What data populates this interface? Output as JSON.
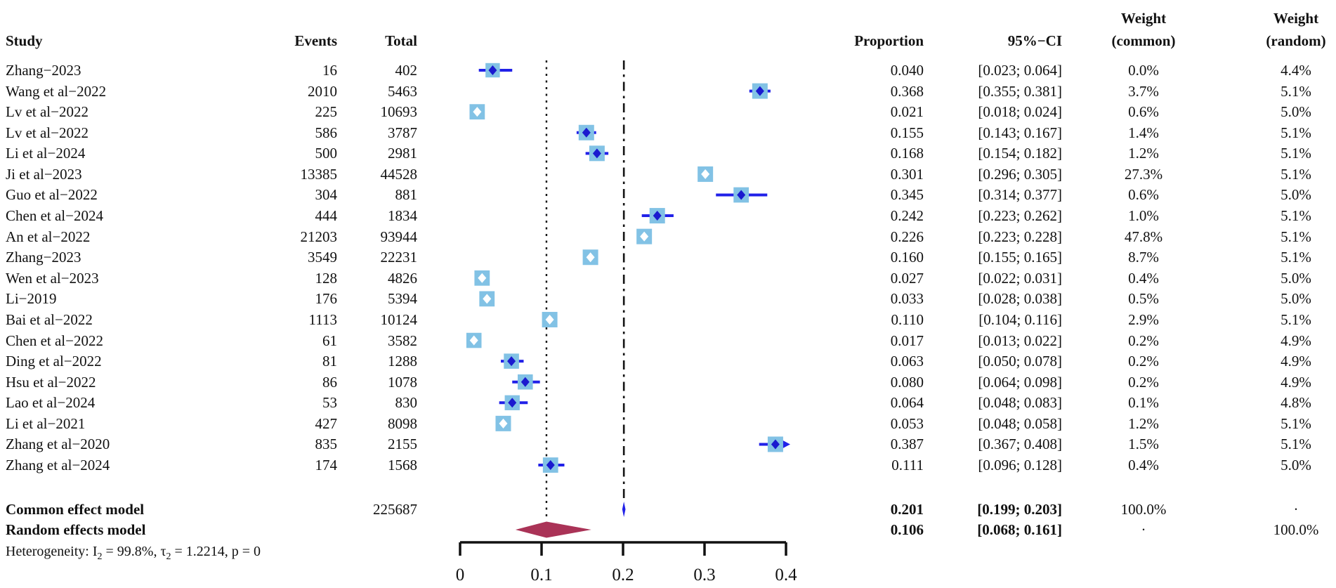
{
  "columns": {
    "study": "Study",
    "events": "Events",
    "total": "Total",
    "proportion": "Proportion",
    "ci": "95%−CI",
    "weight_common_line1": "Weight",
    "weight_common_line2": "(common)",
    "weight_random_line1": "Weight",
    "weight_random_line2": "(random)"
  },
  "heterogeneity": {
    "prefix": "Heterogeneity: I",
    "sub1": "2",
    "mid": " = 99.8%, τ",
    "sub2": "2",
    "suffix": " = 1.2214, p = 0"
  },
  "chart_data": {
    "type": "forest",
    "x_axis": {
      "min": 0,
      "max": 0.4,
      "ticks": [
        0,
        0.1,
        0.2,
        0.3,
        0.4
      ],
      "tick_labels": [
        "0",
        "0.1",
        "0.2",
        "0.3",
        "0.4"
      ]
    },
    "reference_lines": [
      {
        "value": 0.106,
        "style": "dotted"
      },
      {
        "value": 0.201,
        "style": "dash-dot"
      }
    ],
    "studies": [
      {
        "study": "Zhang−2023",
        "events": "16",
        "total": "402",
        "proportion": "0.040",
        "ci": "[0.023; 0.064]",
        "weight_common": "0.0%",
        "weight_random": "4.4%",
        "p": 0.04,
        "lo": 0.023,
        "hi": 0.064
      },
      {
        "study": "Wang et al−2022",
        "events": "2010",
        "total": "5463",
        "proportion": "0.368",
        "ci": "[0.355; 0.381]",
        "weight_common": "3.7%",
        "weight_random": "5.1%",
        "p": 0.368,
        "lo": 0.355,
        "hi": 0.381
      },
      {
        "study": "Lv et al−2022",
        "events": "225",
        "total": "10693",
        "proportion": "0.021",
        "ci": "[0.018; 0.024]",
        "weight_common": "0.6%",
        "weight_random": "5.0%",
        "p": 0.021,
        "lo": 0.018,
        "hi": 0.024
      },
      {
        "study": "Lv et al−2022",
        "events": "586",
        "total": "3787",
        "proportion": "0.155",
        "ci": "[0.143; 0.167]",
        "weight_common": "1.4%",
        "weight_random": "5.1%",
        "p": 0.155,
        "lo": 0.143,
        "hi": 0.167
      },
      {
        "study": "Li et al−2024",
        "events": "500",
        "total": "2981",
        "proportion": "0.168",
        "ci": "[0.154; 0.182]",
        "weight_common": "1.2%",
        "weight_random": "5.1%",
        "p": 0.168,
        "lo": 0.154,
        "hi": 0.182
      },
      {
        "study": "Ji et al−2023",
        "events": "13385",
        "total": "44528",
        "proportion": "0.301",
        "ci": "[0.296; 0.305]",
        "weight_common": "27.3%",
        "weight_random": "5.1%",
        "p": 0.301,
        "lo": 0.296,
        "hi": 0.305
      },
      {
        "study": "Guo et al−2022",
        "events": "304",
        "total": "881",
        "proportion": "0.345",
        "ci": "[0.314; 0.377]",
        "weight_common": "0.6%",
        "weight_random": "5.0%",
        "p": 0.345,
        "lo": 0.314,
        "hi": 0.377
      },
      {
        "study": "Chen et al−2024",
        "events": "444",
        "total": "1834",
        "proportion": "0.242",
        "ci": "[0.223; 0.262]",
        "weight_common": "1.0%",
        "weight_random": "5.1%",
        "p": 0.242,
        "lo": 0.223,
        "hi": 0.262
      },
      {
        "study": "An et al−2022",
        "events": "21203",
        "total": "93944",
        "proportion": "0.226",
        "ci": "[0.223; 0.228]",
        "weight_common": "47.8%",
        "weight_random": "5.1%",
        "p": 0.226,
        "lo": 0.223,
        "hi": 0.228
      },
      {
        "study": "Zhang−2023",
        "events": "3549",
        "total": "22231",
        "proportion": "0.160",
        "ci": "[0.155; 0.165]",
        "weight_common": "8.7%",
        "weight_random": "5.1%",
        "p": 0.16,
        "lo": 0.155,
        "hi": 0.165
      },
      {
        "study": "Wen et al−2023",
        "events": "128",
        "total": "4826",
        "proportion": "0.027",
        "ci": "[0.022; 0.031]",
        "weight_common": "0.4%",
        "weight_random": "5.0%",
        "p": 0.027,
        "lo": 0.022,
        "hi": 0.031
      },
      {
        "study": "Li−2019",
        "events": "176",
        "total": "5394",
        "proportion": "0.033",
        "ci": "[0.028; 0.038]",
        "weight_common": "0.5%",
        "weight_random": "5.0%",
        "p": 0.033,
        "lo": 0.028,
        "hi": 0.038
      },
      {
        "study": "Bai et al−2022",
        "events": "1113",
        "total": "10124",
        "proportion": "0.110",
        "ci": "[0.104; 0.116]",
        "weight_common": "2.9%",
        "weight_random": "5.1%",
        "p": 0.11,
        "lo": 0.104,
        "hi": 0.116
      },
      {
        "study": "Chen et al−2022",
        "events": "61",
        "total": "3582",
        "proportion": "0.017",
        "ci": "[0.013; 0.022]",
        "weight_common": "0.2%",
        "weight_random": "4.9%",
        "p": 0.017,
        "lo": 0.013,
        "hi": 0.022
      },
      {
        "study": "Ding et al−2022",
        "events": "81",
        "total": "1288",
        "proportion": "0.063",
        "ci": "[0.050; 0.078]",
        "weight_common": "0.2%",
        "weight_random": "4.9%",
        "p": 0.063,
        "lo": 0.05,
        "hi": 0.078
      },
      {
        "study": "Hsu et al−2022",
        "events": "86",
        "total": "1078",
        "proportion": "0.080",
        "ci": "[0.064; 0.098]",
        "weight_common": "0.2%",
        "weight_random": "4.9%",
        "p": 0.08,
        "lo": 0.064,
        "hi": 0.098
      },
      {
        "study": "Lao et al−2024",
        "events": "53",
        "total": "830",
        "proportion": "0.064",
        "ci": "[0.048; 0.083]",
        "weight_common": "0.1%",
        "weight_random": "4.8%",
        "p": 0.064,
        "lo": 0.048,
        "hi": 0.083
      },
      {
        "study": "Li et al−2021",
        "events": "427",
        "total": "8098",
        "proportion": "0.053",
        "ci": "[0.048; 0.058]",
        "weight_common": "1.2%",
        "weight_random": "5.1%",
        "p": 0.053,
        "lo": 0.048,
        "hi": 0.058
      },
      {
        "study": "Zhang et al−2020",
        "events": "835",
        "total": "2155",
        "proportion": "0.387",
        "ci": "[0.367; 0.408]",
        "weight_common": "1.5%",
        "weight_random": "5.1%",
        "p": 0.387,
        "lo": 0.367,
        "hi": 0.408
      },
      {
        "study": "Zhang et al−2024",
        "events": "174",
        "total": "1568",
        "proportion": "0.111",
        "ci": "[0.096; 0.128]",
        "weight_common": "0.4%",
        "weight_random": "5.0%",
        "p": 0.111,
        "lo": 0.096,
        "hi": 0.128
      }
    ],
    "summary_common": {
      "label": "Common effect model",
      "total": "225687",
      "proportion": "0.201",
      "ci": "[0.199; 0.203]",
      "weight_common": "100.0%",
      "weight_random": "·",
      "p": 0.201,
      "lo": 0.199,
      "hi": 0.203
    },
    "summary_random": {
      "label": "Random effects model",
      "total": "",
      "proportion": "0.106",
      "ci": "[0.068; 0.161]",
      "weight_common": "·",
      "weight_random": "100.0%",
      "p": 0.106,
      "lo": 0.068,
      "hi": 0.161
    },
    "colors": {
      "square": "#82C2E5",
      "ci_line": "#2121E8",
      "marker_blue": "#1A1ACF",
      "marker_white": "#FFFFFF",
      "summary_random_diamond": "#AA3357",
      "summary_common_diamond": "#2121E8",
      "axis": "#111111",
      "ref_line": "#151515"
    }
  }
}
